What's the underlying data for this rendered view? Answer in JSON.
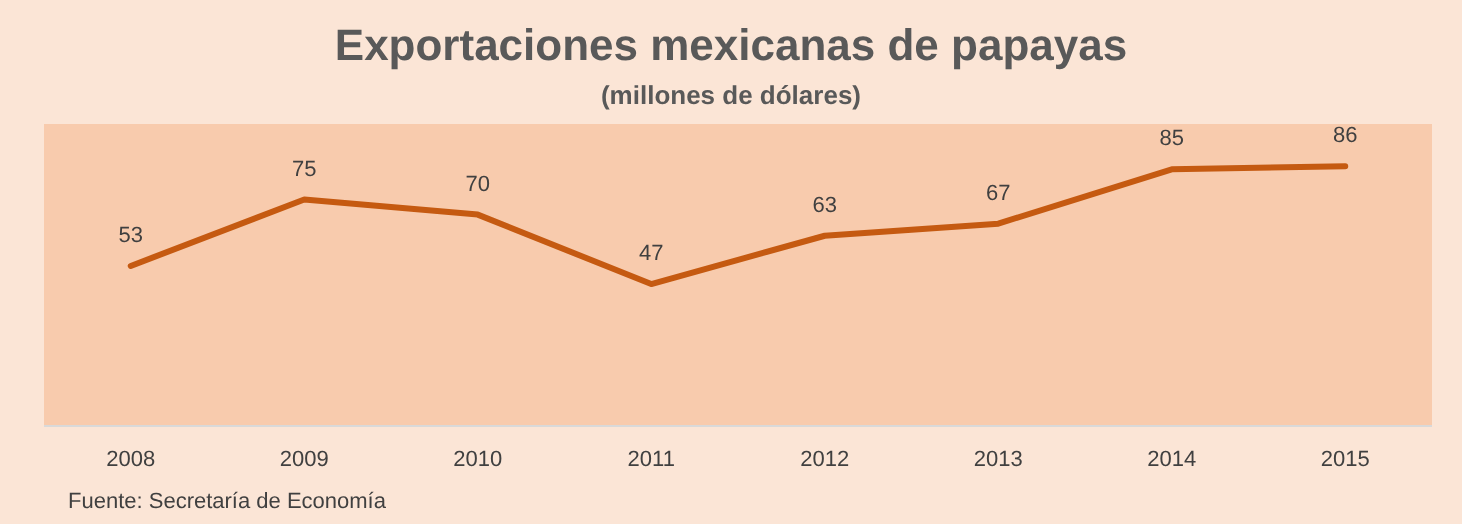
{
  "chart_data": {
    "type": "line",
    "title": "Exportaciones mexicanas de papayas",
    "subtitle": "(millones de dólares)",
    "categories": [
      "2008",
      "2009",
      "2010",
      "2011",
      "2012",
      "2013",
      "2014",
      "2015"
    ],
    "series": [
      {
        "color": "#c55a11",
        "values": [
          53,
          75,
          70,
          47,
          63,
          67,
          85,
          86
        ]
      }
    ],
    "ylim": [
      0,
      100
    ],
    "tick_labels": "x",
    "data_labels": true,
    "marker": "none",
    "line_style": "solid",
    "annotations": [
      "Fuente: Secretaría de Economía"
    ]
  }
}
